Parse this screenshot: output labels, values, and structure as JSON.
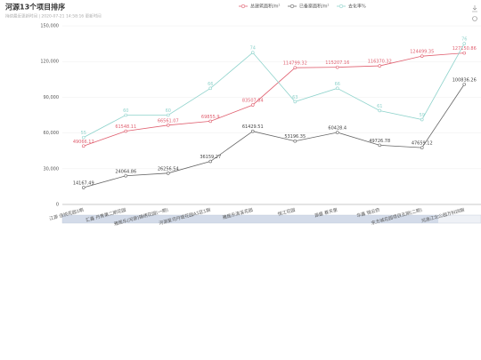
{
  "chart_data": {
    "type": "line",
    "title": "河源13个项目排序",
    "subtitle": "持续最近更新时间 | 2020-07-21 14:58:16 更新时间",
    "categories": [
      "江源 佳悦花园1期",
      "汇鑫 丹青第二期花园",
      "雅居乐(河源)锦绣花园(一期)",
      "河源星河丹堤花园A1区1期",
      "雅居乐清溪花园",
      "恒江花园",
      "源盛 春天里",
      "华鑫 锦云府",
      "东方城花园项目五期(二期)",
      "河源江北公园万科四期"
    ],
    "series": [
      {
        "name": "总建筑面积/m²",
        "color": "#e06070",
        "values": [
          49066.12,
          61548.11,
          66561.07,
          69855.9,
          83507.84,
          114799.32,
          115207.16,
          116370.32,
          124499.35,
          127150.86
        ]
      },
      {
        "name": "已备案面积/m²",
        "color": "#666666",
        "values": [
          14167.49,
          24064.86,
          26256.54,
          36159.27,
          61429.51,
          53196.35,
          60428.4,
          49726.78,
          47659.12,
          100836.26
        ]
      },
      {
        "name": "去化率%",
        "color": "#8fd3cc",
        "axis": "y2",
        "values": [
          55,
          60,
          60,
          66,
          74,
          63,
          66,
          61,
          59,
          76
        ]
      }
    ],
    "ylim": [
      0,
      150000
    ],
    "yticks": [
      0,
      {
        "value": 30000,
        "label": "30,000"
      },
      {
        "value": 60000,
        "label": "60,000"
      },
      {
        "value": 90000,
        "label": "90,000"
      },
      {
        "value": 120000,
        "label": "120,000"
      },
      {
        "value": 150000,
        "label": "150,000"
      }
    ],
    "y2lim": [
      40,
      80
    ],
    "grid": true
  }
}
